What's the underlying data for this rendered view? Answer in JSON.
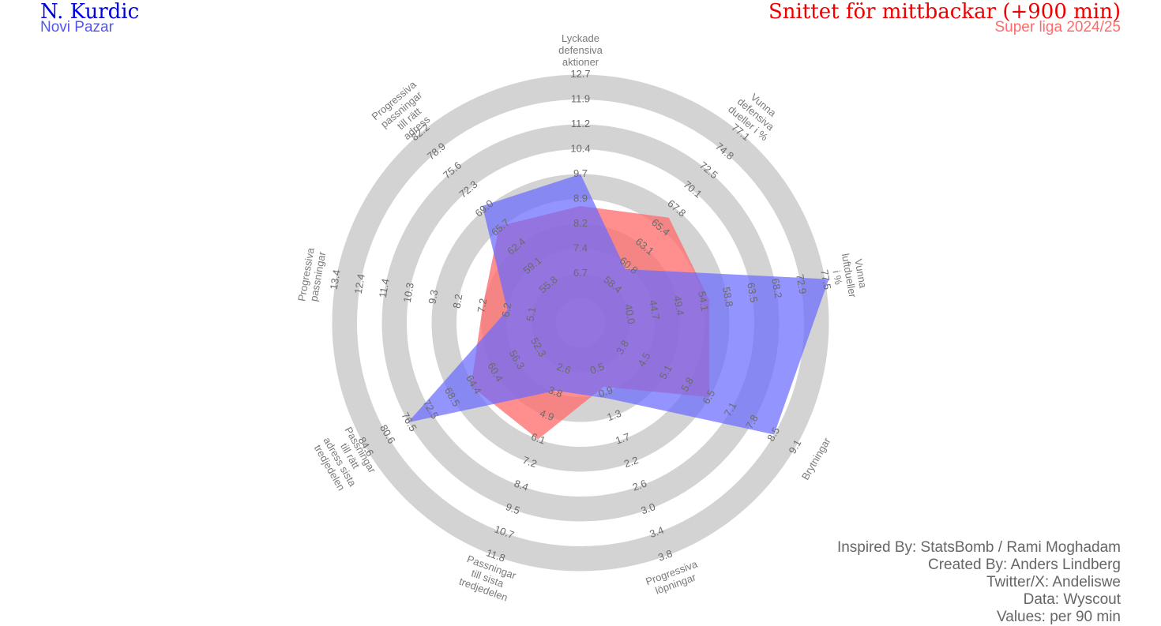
{
  "header": {
    "player": "N. Kurdic",
    "team": "Novi Pazar",
    "comparison": "Snittet för mittbackar (+900 min)",
    "league": "Super liga 2024/25"
  },
  "credits": [
    "Inspired By: StatsBomb / Rami Moghadam",
    "Created By: Anders Lindberg",
    "Twitter/X: Andeliswe",
    "Data: Wyscout",
    "Values: per 90 min"
  ],
  "colors": {
    "player": "#6b6bff",
    "average": "#ff7070",
    "rings": "#d3d3d3"
  },
  "chart_data": {
    "type": "radar",
    "ring_count": 5,
    "axes": [
      {
        "label": "Lyckade defensiva aktioner",
        "ticks": [
          "6.7",
          "7.4",
          "8.2",
          "8.9",
          "9.7",
          "10.4",
          "11.2",
          "11.9",
          "12.7"
        ]
      },
      {
        "label": "Vunna defensiva dueller i %",
        "ticks": [
          "58.4",
          "60.8",
          "63.1",
          "65.4",
          "67.8",
          "70.1",
          "72.5",
          "74.8",
          "77.1"
        ]
      },
      {
        "label": "Vunna luftdueller i %",
        "ticks": [
          "40.0",
          "44.7",
          "49.4",
          "54.1",
          "58.8",
          "63.5",
          "68.2",
          "72.9",
          "77.5"
        ]
      },
      {
        "label": "Brytningar",
        "ticks": [
          "3.8",
          "4.5",
          "5.1",
          "5.8",
          "6.5",
          "7.1",
          "7.8",
          "8.5",
          "9.1"
        ]
      },
      {
        "label": "Progressiva löpningar",
        "ticks": [
          "0.5",
          "0.9",
          "1.3",
          "1.7",
          "2.2",
          "2.6",
          "3.0",
          "3.4",
          "3.8"
        ]
      },
      {
        "label": "Passningar till sista tredjedelen",
        "ticks": [
          "2.6",
          "3.8",
          "4.9",
          "6.1",
          "7.2",
          "8.4",
          "9.5",
          "10.7",
          "11.8"
        ]
      },
      {
        "label": "Passningar till rätt adress sista tredjedelen",
        "ticks": [
          "52.3",
          "56.3",
          "60.4",
          "64.4",
          "68.5",
          "72.5",
          "76.5",
          "80.6",
          "84.6"
        ]
      },
      {
        "label": "Progressiva passningar",
        "ticks": [
          "5.1",
          "6.2",
          "7.2",
          "8.2",
          "9.3",
          "10.3",
          "11.4",
          "12.4",
          "13.4"
        ]
      },
      {
        "label": "Progressiva passningar till rätt adress",
        "ticks": [
          "55.8",
          "59.1",
          "62.4",
          "65.7",
          "69.0",
          "72.3",
          "75.6",
          "78.9",
          "82.2"
        ]
      }
    ],
    "series": [
      {
        "name": "Snittet för mittbackar (+900 min)",
        "values": [
          8.7,
          66.7,
          55.4,
          6.5,
          0.8,
          6.1,
          64.8,
          7.2,
          66.0
        ]
      },
      {
        "name": "N. Kurdic",
        "values": [
          9.7,
          60.4,
          78.2,
          8.5,
          1.0,
          3.7,
          76.6,
          6.2,
          69.5
        ]
      }
    ]
  }
}
